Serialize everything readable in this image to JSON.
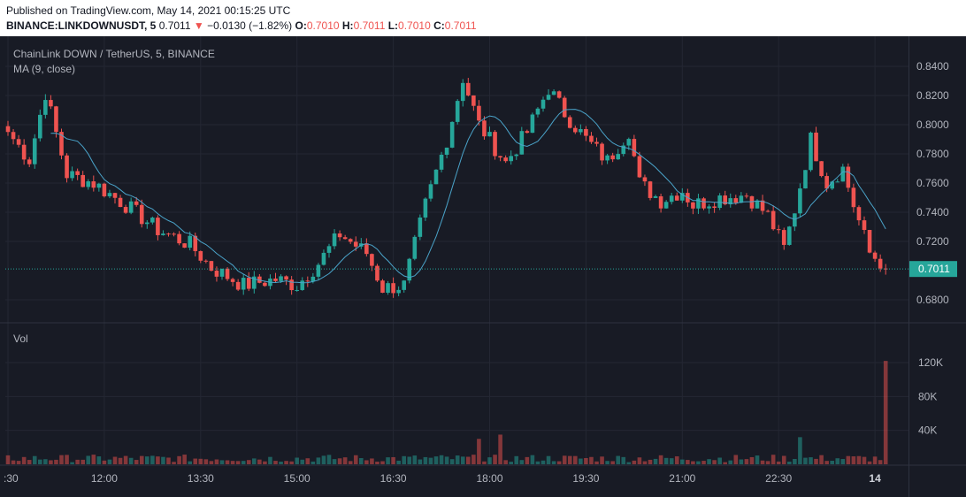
{
  "header": {
    "published": "Published on TradingView.com, May 14, 2021 00:15:25 UTC",
    "symbol": "BINANCE:LINKDOWNUSDT, 5",
    "last": "0.7011",
    "change_arrow": "▼",
    "change": "−0.0130 (−1.82%)",
    "open_label": "O:",
    "open": "0.7010",
    "high_label": "H:",
    "high": "0.7011",
    "low_label": "L:",
    "low": "0.7010",
    "close_label": "C:",
    "close": "0.7011"
  },
  "legend": {
    "series_title": "ChainLink DOWN / TetherUS, 5, BINANCE",
    "ma_label": "MA (9, close)",
    "volume_label": "Vol"
  },
  "colors": {
    "background": "#181b25",
    "grid": "#242733",
    "up": "#26a69a",
    "down": "#ef5350",
    "ma": "#4aa3c9",
    "text": "#b2b5be",
    "last_price_badge": "#26a69a"
  },
  "chart_data": {
    "type": "candlestick",
    "interval": "5",
    "last_price_label": "0.7011",
    "price_axis": {
      "ticks": [
        "0.8400",
        "0.8200",
        "0.8000",
        "0.7800",
        "0.7600",
        "0.7400",
        "0.7200",
        "0.6800"
      ],
      "tick_values": [
        0.84,
        0.82,
        0.8,
        0.78,
        0.76,
        0.74,
        0.72,
        0.68
      ],
      "range": [
        0.67,
        0.85
      ]
    },
    "volume_axis": {
      "ticks": [
        "120K",
        "80K",
        "40K"
      ],
      "tick_values": [
        120000,
        80000,
        40000
      ],
      "range": [
        0,
        130000
      ]
    },
    "time_axis": {
      "ticks": [
        ":30",
        "12:00",
        "13:30",
        "15:00",
        "16:30",
        "18:00",
        "19:30",
        "21:00",
        "22:30",
        "14"
      ],
      "tick_index": [
        0,
        18,
        36,
        54,
        72,
        90,
        108,
        126,
        144,
        162
      ]
    },
    "ma_period": 9,
    "anchors": [
      {
        "i": 0,
        "c": 0.795
      },
      {
        "i": 4,
        "c": 0.776
      },
      {
        "i": 7,
        "c": 0.822
      },
      {
        "i": 11,
        "c": 0.766
      },
      {
        "i": 16,
        "c": 0.76
      },
      {
        "i": 22,
        "c": 0.745
      },
      {
        "i": 28,
        "c": 0.728
      },
      {
        "i": 34,
        "c": 0.718
      },
      {
        "i": 38,
        "c": 0.702
      },
      {
        "i": 44,
        "c": 0.69
      },
      {
        "i": 50,
        "c": 0.694
      },
      {
        "i": 54,
        "c": 0.69
      },
      {
        "i": 58,
        "c": 0.705
      },
      {
        "i": 62,
        "c": 0.725
      },
      {
        "i": 67,
        "c": 0.712
      },
      {
        "i": 70,
        "c": 0.688
      },
      {
        "i": 74,
        "c": 0.69
      },
      {
        "i": 78,
        "c": 0.745
      },
      {
        "i": 82,
        "c": 0.79
      },
      {
        "i": 85,
        "c": 0.832
      },
      {
        "i": 88,
        "c": 0.8
      },
      {
        "i": 93,
        "c": 0.774
      },
      {
        "i": 97,
        "c": 0.795
      },
      {
        "i": 101,
        "c": 0.825
      },
      {
        "i": 104,
        "c": 0.808
      },
      {
        "i": 108,
        "c": 0.79
      },
      {
        "i": 112,
        "c": 0.775
      },
      {
        "i": 116,
        "c": 0.796
      },
      {
        "i": 118,
        "c": 0.76
      },
      {
        "i": 122,
        "c": 0.748
      },
      {
        "i": 126,
        "c": 0.755
      },
      {
        "i": 128,
        "c": 0.745
      },
      {
        "i": 133,
        "c": 0.75
      },
      {
        "i": 138,
        "c": 0.752
      },
      {
        "i": 142,
        "c": 0.738
      },
      {
        "i": 145,
        "c": 0.715
      },
      {
        "i": 147,
        "c": 0.742
      },
      {
        "i": 150,
        "c": 0.79
      },
      {
        "i": 153,
        "c": 0.76
      },
      {
        "i": 156,
        "c": 0.77
      },
      {
        "i": 158,
        "c": 0.745
      },
      {
        "i": 161,
        "c": 0.712
      },
      {
        "i": 163,
        "c": 0.706
      },
      {
        "i": 164,
        "c": 0.701
      }
    ],
    "volume_spikes": [
      {
        "i": 88,
        "v": 30000
      },
      {
        "i": 92,
        "v": 35000
      },
      {
        "i": 148,
        "v": 32000
      },
      {
        "i": 164,
        "v": 122000
      }
    ]
  }
}
